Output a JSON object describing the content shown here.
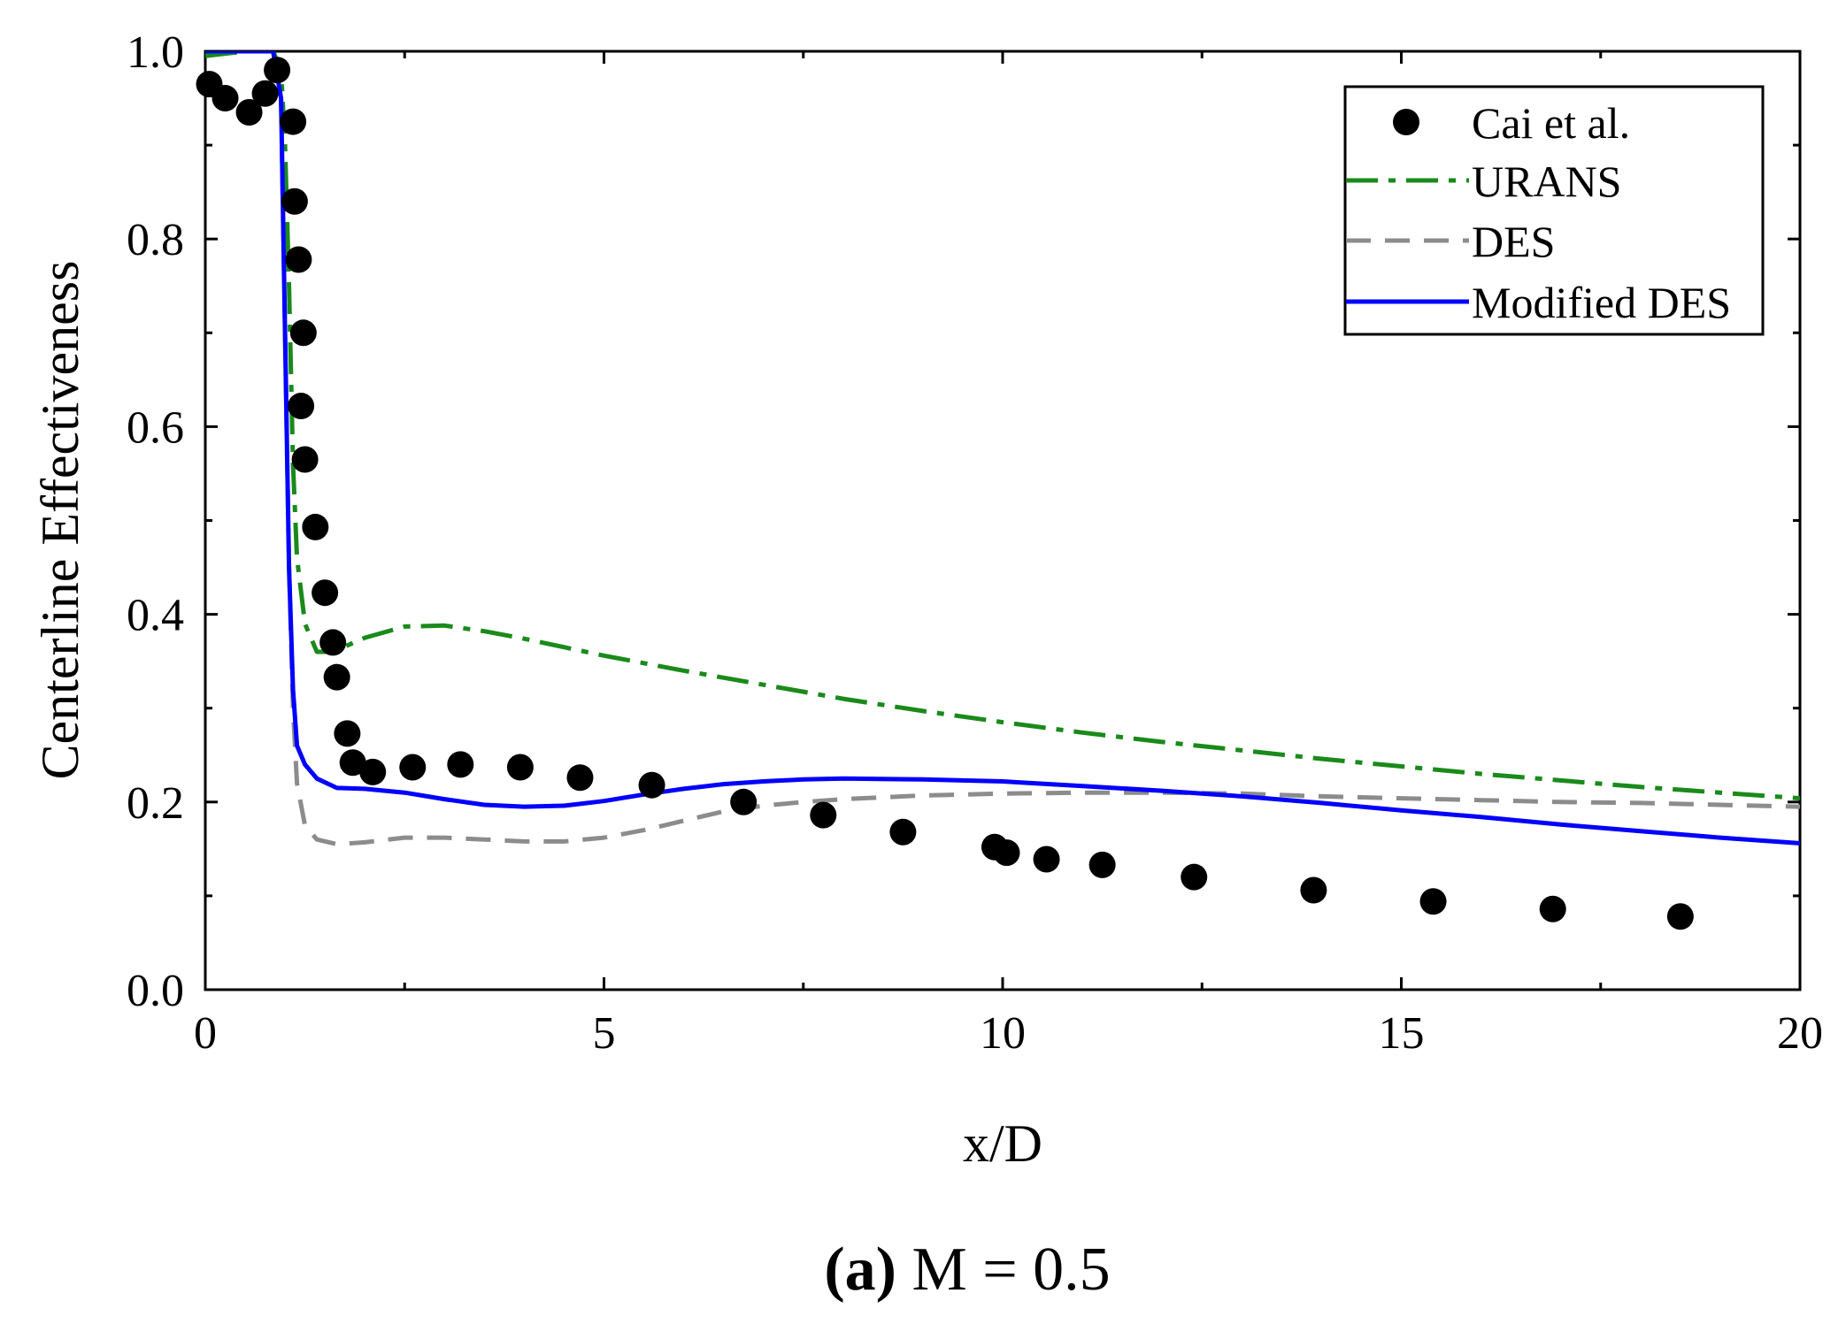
{
  "caption": {
    "label": "(a)",
    "text": " M = 0.5"
  },
  "chart_data": {
    "type": "line",
    "title": "",
    "xlabel": "x/D",
    "ylabel": "Centerline Effectiveness",
    "xlim": [
      0,
      20
    ],
    "ylim": [
      0,
      1
    ],
    "xticks": [
      0,
      5,
      10,
      15,
      20
    ],
    "xtick_labels": [
      "0",
      "5",
      "10",
      "15",
      "20"
    ],
    "yticks": [
      0,
      0.2,
      0.4,
      0.6,
      0.8,
      1.0
    ],
    "ytick_labels": [
      "0.0",
      "0.2",
      "0.4",
      "0.6",
      "0.8",
      "1.0"
    ],
    "grid": false,
    "legend_position": "top-right",
    "series": [
      {
        "name": "Cai et al.",
        "style": "markers",
        "color": "#000000",
        "x": [
          0.05,
          0.25,
          0.55,
          0.75,
          0.9,
          1.1,
          1.12,
          1.17,
          1.23,
          1.2,
          1.25,
          1.38,
          1.5,
          1.6,
          1.65,
          1.78,
          1.85,
          2.1,
          2.6,
          3.2,
          3.95,
          4.7,
          5.6,
          6.75,
          7.75,
          8.75,
          9.9,
          10.05,
          10.55,
          11.25,
          12.4,
          13.9,
          15.4,
          16.9,
          18.5
        ],
        "y": [
          0.965,
          0.95,
          0.935,
          0.955,
          0.98,
          0.925,
          0.84,
          0.778,
          0.7,
          0.622,
          0.565,
          0.493,
          0.423,
          0.37,
          0.333,
          0.273,
          0.242,
          0.232,
          0.237,
          0.24,
          0.237,
          0.226,
          0.218,
          0.2,
          0.186,
          0.168,
          0.152,
          0.146,
          0.139,
          0.133,
          0.12,
          0.106,
          0.094,
          0.086,
          0.078
        ]
      },
      {
        "name": "URANS",
        "style": "dash-dot",
        "color": "#1a8a1a",
        "x": [
          0,
          0.3,
          0.5,
          0.85,
          0.95,
          1.0,
          1.05,
          1.1,
          1.15,
          1.25,
          1.4,
          1.6,
          2.0,
          2.5,
          3.0,
          3.5,
          4.0,
          5.0,
          6.0,
          7.0,
          8.0,
          9.0,
          10.0,
          11.0,
          12.0,
          13.0,
          14.0,
          15.0,
          16.0,
          17.0,
          18.0,
          19.0,
          20.0
        ],
        "y": [
          0.995,
          0.998,
          1.0,
          1.0,
          0.98,
          0.9,
          0.75,
          0.56,
          0.46,
          0.39,
          0.36,
          0.36,
          0.375,
          0.387,
          0.388,
          0.382,
          0.374,
          0.356,
          0.34,
          0.325,
          0.31,
          0.297,
          0.285,
          0.274,
          0.264,
          0.255,
          0.246,
          0.238,
          0.23,
          0.223,
          0.216,
          0.21,
          0.204
        ]
      },
      {
        "name": "DES",
        "style": "dashed",
        "color": "#8c8c8c",
        "x": [
          0,
          0.85,
          0.95,
          1.0,
          1.05,
          1.1,
          1.15,
          1.25,
          1.4,
          1.65,
          2.0,
          2.5,
          3.0,
          3.5,
          4.0,
          4.5,
          5.0,
          5.5,
          6.0,
          6.5,
          7.0,
          7.5,
          8.0,
          9.0,
          10.0,
          11.0,
          12.0,
          13.0,
          14.0,
          15.0,
          16.0,
          17.0,
          18.0,
          19.0,
          20.0
        ],
        "y": [
          1.0,
          1.0,
          0.95,
          0.7,
          0.45,
          0.3,
          0.22,
          0.175,
          0.16,
          0.155,
          0.157,
          0.162,
          0.162,
          0.16,
          0.158,
          0.158,
          0.162,
          0.17,
          0.18,
          0.19,
          0.196,
          0.2,
          0.203,
          0.207,
          0.209,
          0.21,
          0.21,
          0.209,
          0.206,
          0.204,
          0.202,
          0.2,
          0.199,
          0.197,
          0.195
        ]
      },
      {
        "name": "Modified DES",
        "style": "solid",
        "color": "#0000ff",
        "x": [
          0,
          0.85,
          0.95,
          1.0,
          1.05,
          1.1,
          1.15,
          1.25,
          1.4,
          1.65,
          2.0,
          2.5,
          3.0,
          3.5,
          4.0,
          4.5,
          5.0,
          5.5,
          6.0,
          6.5,
          7.0,
          7.5,
          8.0,
          9.0,
          10.0,
          11.0,
          12.0,
          13.0,
          14.0,
          15.0,
          16.0,
          17.0,
          18.0,
          19.0,
          20.0
        ],
        "y": [
          1.0,
          1.0,
          0.95,
          0.7,
          0.45,
          0.32,
          0.26,
          0.24,
          0.225,
          0.215,
          0.214,
          0.21,
          0.203,
          0.197,
          0.195,
          0.196,
          0.201,
          0.208,
          0.214,
          0.219,
          0.222,
          0.224,
          0.225,
          0.224,
          0.222,
          0.217,
          0.212,
          0.206,
          0.199,
          0.191,
          0.184,
          0.176,
          0.169,
          0.162,
          0.156
        ]
      }
    ]
  }
}
